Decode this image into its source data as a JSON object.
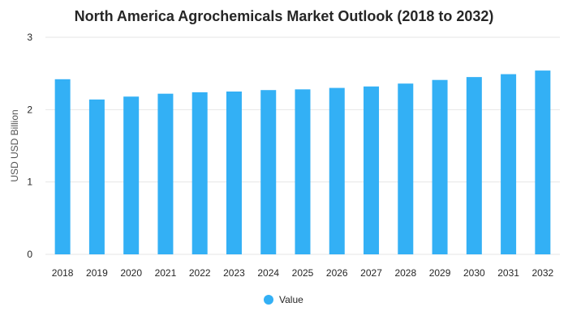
{
  "chart_data": {
    "type": "bar",
    "title": "North America Agrochemicals Market Outlook (2018 to 2032)",
    "ylabel": "USD USD Billion",
    "xlabel": "",
    "categories": [
      "2018",
      "2019",
      "2020",
      "2021",
      "2022",
      "2023",
      "2024",
      "2025",
      "2026",
      "2027",
      "2028",
      "2029",
      "2030",
      "2031",
      "2032"
    ],
    "series": [
      {
        "name": "Value",
        "values": [
          2.42,
          2.14,
          2.18,
          2.22,
          2.24,
          2.25,
          2.27,
          2.28,
          2.3,
          2.32,
          2.36,
          2.41,
          2.45,
          2.49,
          2.54
        ]
      }
    ],
    "ylim": [
      0,
      3
    ],
    "yticks": [
      "0",
      "1",
      "2",
      "3"
    ],
    "grid": true,
    "legend_position": "bottom",
    "bar_color": "#33b0f5"
  }
}
